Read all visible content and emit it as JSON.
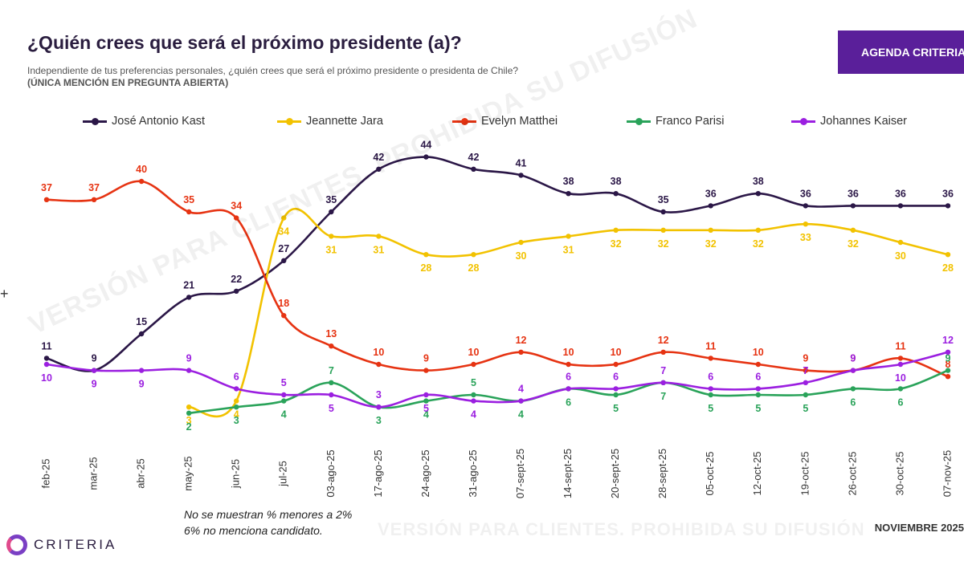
{
  "header": {
    "title": "¿Quién crees que será el próximo presidente (a)?",
    "subtitle": "Independiente de tus preferencias personales, ¿quién crees que será el próximo presidente o presidenta de Chile?",
    "subtitle_note": "(ÚNICA MENCIÓN EN PREGUNTA ABIERTA)",
    "banner": "AGENDA CRITERIA"
  },
  "footer": {
    "note_1": "No se muestran % menores a 2%",
    "note_2": "6% no menciona candidato.",
    "date": "NOVIEMBRE 2025",
    "watermark": "VERSIÓN PARA CLIENTES. PROHIBIDA SU DIFUSIÓN",
    "logo": "CRITERIA",
    "edge_mark": "+"
  },
  "chart_data": {
    "type": "line",
    "categories": [
      "feb-25",
      "mar-25",
      "abr-25",
      "may-25",
      "jun-25",
      "jul-25",
      "03-ago-25",
      "17-ago-25",
      "24-ago-25",
      "31-ago-25",
      "07-sept-25",
      "14-sept-25",
      "20-sept-25",
      "28-sept-25",
      "05-oct-25",
      "12-oct-25",
      "19-oct-25",
      "26-oct-25",
      "30-oct-25",
      "07-nov-25"
    ],
    "legend_position": "top",
    "grid": false,
    "series": [
      {
        "name": "José Antonio Kast",
        "color": "#2b1747",
        "values": [
          11,
          9,
          15,
          21,
          22,
          27,
          35,
          42,
          44,
          42,
          41,
          38,
          38,
          35,
          36,
          38,
          36,
          36,
          36,
          36
        ]
      },
      {
        "name": "Jeannette Jara",
        "color": "#f2c200",
        "values": [
          null,
          null,
          null,
          3,
          4,
          34,
          31,
          31,
          28,
          28,
          30,
          31,
          32,
          32,
          32,
          32,
          33,
          32,
          30,
          28
        ]
      },
      {
        "name": "Evelyn Matthei",
        "color": "#e63312",
        "values": [
          37,
          37,
          40,
          35,
          34,
          18,
          13,
          10,
          9,
          10,
          12,
          10,
          10,
          12,
          11,
          10,
          9,
          9,
          11,
          8
        ]
      },
      {
        "name": "Franco Parisi",
        "color": "#2aa35a",
        "values": [
          null,
          null,
          null,
          2,
          3,
          4,
          7,
          3,
          4,
          5,
          4,
          6,
          5,
          7,
          5,
          5,
          5,
          6,
          6,
          9
        ]
      },
      {
        "name": "Johannes Kaiser",
        "color": "#9b1fe0",
        "values": [
          10,
          9,
          9,
          9,
          6,
          5,
          5,
          3,
          5,
          4,
          4,
          6,
          6,
          7,
          6,
          6,
          7,
          9,
          10,
          12
        ]
      }
    ]
  }
}
